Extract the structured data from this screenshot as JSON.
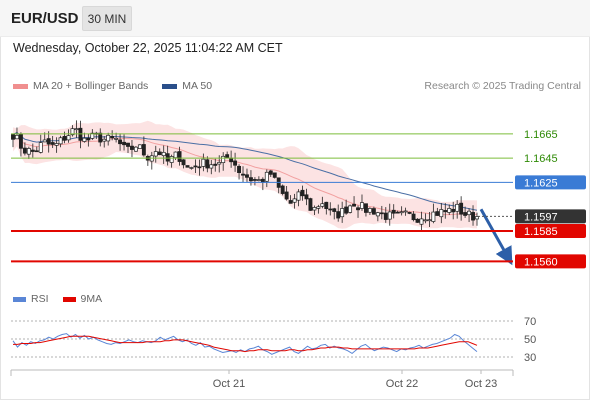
{
  "header": {
    "symbol": "EUR/USD",
    "timeframe": "30 MIN"
  },
  "datetime": "Wednesday, October 22, 2025 11:04:22 AM CET",
  "legend": {
    "items": [
      {
        "label": "MA 20 + Bollinger Bands",
        "color": "#f08f8f"
      },
      {
        "label": "MA 50",
        "color": "#2a4f8a"
      }
    ],
    "credit": "Research © 2025 Trading Central"
  },
  "colors": {
    "candle_up": "#ffffff",
    "candle_down": "#222222",
    "bands_fill": "#fbd9d9",
    "ma20": "#f2a0a0",
    "ma50": "#4a6fa5",
    "resistance": "#7cbd3a",
    "pivot": "#3a7bd5",
    "support": "#e10600",
    "current": "#333333",
    "arrow": "#2d5fa8",
    "rsi": "#5a86d6",
    "rsi_ma": "#e10600"
  },
  "chart_data": [
    {
      "type": "candlestick",
      "ylim": [
        1.1543,
        1.1683
      ],
      "levels": [
        {
          "label": "1.1665",
          "value": 1.1665,
          "kind": "resistance"
        },
        {
          "label": "1.1645",
          "value": 1.1645,
          "kind": "resistance"
        },
        {
          "label": "1.1625",
          "value": 1.1625,
          "kind": "pivot"
        },
        {
          "label": "1.1597",
          "value": 1.1597,
          "kind": "current"
        },
        {
          "label": "1.1585",
          "value": 1.1585,
          "kind": "support"
        },
        {
          "label": "1.1560",
          "value": 1.156,
          "kind": "support"
        }
      ],
      "x_ticks": [
        "Oct 21",
        "Oct 22",
        "Oct 23"
      ],
      "close_path": [
        1.1665,
        1.1652,
        1.165,
        1.1658,
        1.1654,
        1.1662,
        1.1669,
        1.1659,
        1.1663,
        1.166,
        1.166,
        1.165,
        1.1656,
        1.1646,
        1.1652,
        1.1642,
        1.1648,
        1.1636,
        1.164,
        1.1641,
        1.164,
        1.1647,
        1.1634,
        1.1628,
        1.1626,
        1.1632,
        1.1616,
        1.1607,
        1.1616,
        1.1602,
        1.1609,
        1.1597,
        1.1601,
        1.1609,
        1.1603,
        1.1602,
        1.1598,
        1.1596,
        1.1598,
        1.1596,
        1.1598,
        1.16,
        1.1601,
        1.1604,
        1.1598,
        1.1597
      ],
      "forecast": {
        "from": 1.1598,
        "to": 1.156
      }
    },
    {
      "type": "line",
      "title": "RSI",
      "series": [
        {
          "name": "RSI",
          "values": [
            48,
            41,
            46,
            43,
            47,
            45,
            48,
            49,
            52,
            50,
            53,
            55,
            56,
            52,
            55,
            51,
            54,
            50,
            52,
            49,
            47,
            45,
            44,
            46,
            45,
            47,
            49,
            47,
            46,
            48,
            47,
            46,
            48,
            52,
            49,
            51,
            53,
            49,
            47,
            49,
            45,
            43,
            46,
            41,
            42,
            39,
            37,
            35,
            36,
            37,
            35,
            38,
            36,
            39,
            40,
            42,
            38,
            36,
            33,
            35,
            37,
            39,
            41,
            36,
            34,
            38,
            42,
            39,
            40,
            43,
            44,
            40,
            42,
            40,
            39,
            37,
            34,
            38,
            42,
            44,
            40,
            37,
            39,
            41,
            40,
            38,
            36,
            39,
            38,
            40,
            41,
            43,
            40,
            42,
            44,
            45,
            47,
            49,
            51,
            55,
            53,
            48,
            44,
            40,
            36
          ]
        },
        {
          "name": "9MA",
          "values": [
            44,
            44,
            45,
            45,
            45,
            46,
            46,
            47,
            48,
            49,
            50,
            51,
            52,
            53,
            53,
            53,
            53,
            53,
            52,
            51,
            50,
            49,
            48,
            47,
            46,
            46,
            46,
            46,
            46,
            46,
            47,
            47,
            47,
            47,
            48,
            48,
            49,
            49,
            49,
            48,
            47,
            46,
            45,
            44,
            43,
            41,
            40,
            39,
            38,
            37,
            37,
            37,
            36,
            37,
            37,
            38,
            38,
            38,
            37,
            37,
            37,
            37,
            38,
            38,
            37,
            37,
            38,
            38,
            39,
            40,
            40,
            41,
            41,
            41,
            40,
            40,
            39,
            39,
            39,
            39,
            39,
            39,
            39,
            39,
            39,
            39,
            39,
            39,
            39,
            39,
            39,
            40,
            40,
            40,
            41,
            42,
            43,
            44,
            45,
            46,
            47,
            47,
            47,
            45,
            43
          ]
        }
      ],
      "ylim": [
        20,
        80
      ],
      "y_ticks": [
        30,
        50,
        70
      ]
    }
  ]
}
